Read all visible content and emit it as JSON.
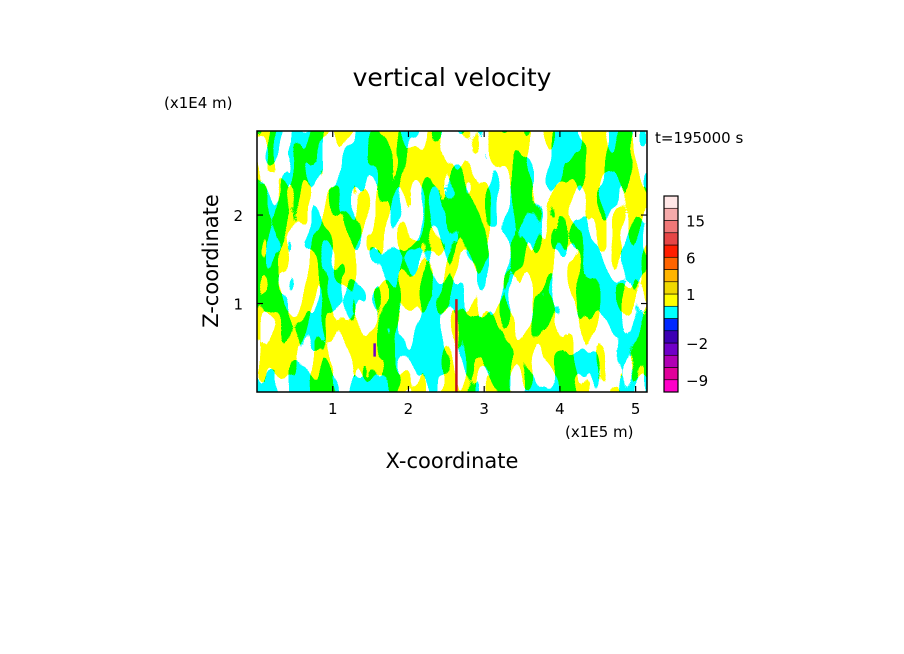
{
  "chart_data": {
    "type": "heatmap",
    "title": "vertical velocity",
    "xlabel": "X-coordinate",
    "ylabel": "Z-coordinate",
    "x_unit": "(x1E5 m)",
    "y_unit": "(x1E4 m)",
    "time_label": "t=195000 s",
    "xlim": [
      0,
      5.15
    ],
    "ylim": [
      0,
      2.95
    ],
    "x_ticks": [
      1,
      2,
      3,
      4,
      5
    ],
    "y_ticks": [
      1,
      2
    ],
    "x_tick_labels": [
      "1",
      "2",
      "3",
      "4",
      "5"
    ],
    "y_tick_labels": [
      "1",
      "2"
    ],
    "dominant_fields": {
      "positive_color": "#ffff00",
      "negative_color": "#00ffff",
      "description_hidden": true
    },
    "updraft_spikes": [
      {
        "x": 1.55,
        "z_top": 0.55,
        "z_bottom": 0.4
      },
      {
        "x": 2.63,
        "z_top": 1.05,
        "z_bottom": 0.0
      }
    ],
    "colorbar": {
      "levels_bottom_to_top": [
        -12,
        -9,
        -6,
        -4,
        -2,
        -1,
        0,
        0.5,
        1,
        2,
        4,
        6,
        9,
        12,
        15,
        18,
        21
      ],
      "colors_bottom_to_top": [
        "#ff00c8",
        "#e0009a",
        "#b000b4",
        "#7000c8",
        "#3c00b4",
        "#0028ff",
        "#00ffff",
        "#ffff00",
        "#f0d800",
        "#ffb400",
        "#ff6400",
        "#ff1e00",
        "#e64646",
        "#f07878",
        "#f5aaaa",
        "#ffe6e6"
      ],
      "labels": [
        {
          "text": "15",
          "value": 15
        },
        {
          "text": "6",
          "value": 6
        },
        {
          "text": "1",
          "value": 1
        },
        {
          "text": "−2",
          "value": -2
        },
        {
          "text": "−9",
          "value": -9
        }
      ]
    }
  }
}
